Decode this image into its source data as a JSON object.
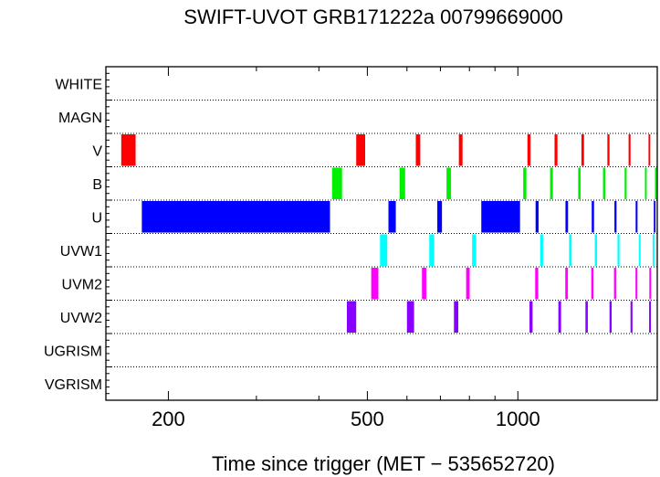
{
  "chart_data": {
    "type": "timeline",
    "title": "SWIFT-UVOT GRB171222a 00799669000",
    "xlabel": "Time since trigger (MET − 535652720)",
    "x_scale": "log",
    "xlim": [
      150,
      1900
    ],
    "x_ticks": [
      200,
      500,
      1000
    ],
    "x_tick_labels": [
      "200",
      "500",
      "1000"
    ],
    "rows": [
      "WHITE",
      "MAGN",
      "V",
      "B",
      "U",
      "UVW1",
      "UVM2",
      "UVW2",
      "UGRISM",
      "VGRISM"
    ],
    "series": [
      {
        "filter": "WHITE",
        "color": "#000000",
        "intervals": []
      },
      {
        "filter": "MAGN",
        "color": "#000000",
        "intervals": []
      },
      {
        "filter": "V",
        "color": "#ff0000",
        "intervals": [
          [
            161,
            172
          ],
          [
            475,
            495
          ],
          [
            625,
            638
          ],
          [
            762,
            775
          ],
          [
            1045,
            1060
          ],
          [
            1184,
            1200
          ],
          [
            1340,
            1356
          ],
          [
            1510,
            1525
          ],
          [
            1665,
            1680
          ],
          [
            1825,
            1840
          ]
        ]
      },
      {
        "filter": "B",
        "color": "#00ee00",
        "intervals": [
          [
            425,
            445
          ],
          [
            580,
            595
          ],
          [
            720,
            735
          ],
          [
            1025,
            1040
          ],
          [
            1160,
            1175
          ],
          [
            1320,
            1335
          ],
          [
            1480,
            1495
          ],
          [
            1635,
            1650
          ],
          [
            1795,
            1810
          ],
          [
            1880,
            1895
          ]
        ]
      },
      {
        "filter": "U",
        "color": "#0000ff",
        "intervals": [
          [
            177,
            421
          ],
          [
            551,
            570
          ],
          [
            690,
            705
          ],
          [
            845,
            1010
          ],
          [
            1085,
            1100
          ],
          [
            1245,
            1260
          ],
          [
            1405,
            1420
          ],
          [
            1560,
            1575
          ],
          [
            1720,
            1735
          ],
          [
            1870,
            1885
          ]
        ]
      },
      {
        "filter": "UVW1",
        "color": "#00ffff",
        "intervals": [
          [
            530,
            548
          ],
          [
            665,
            680
          ],
          [
            810,
            825
          ],
          [
            1108,
            1123
          ],
          [
            1266,
            1281
          ],
          [
            1425,
            1440
          ],
          [
            1582,
            1597
          ],
          [
            1745,
            1760
          ],
          [
            1860,
            1875
          ]
        ]
      },
      {
        "filter": "UVM2",
        "color": "#ff00ff",
        "intervals": [
          [
            509,
            526
          ],
          [
            643,
            656
          ],
          [
            788,
            801
          ],
          [
            1083,
            1098
          ],
          [
            1244,
            1259
          ],
          [
            1402,
            1417
          ],
          [
            1557,
            1572
          ],
          [
            1719,
            1734
          ],
          [
            1832,
            1847
          ]
        ]
      },
      {
        "filter": "UVW2",
        "color": "#8800ff",
        "intervals": [
          [
            455,
            475
          ],
          [
            600,
            620
          ],
          [
            745,
            760
          ],
          [
            1055,
            1070
          ],
          [
            1205,
            1220
          ],
          [
            1365,
            1380
          ],
          [
            1525,
            1540
          ],
          [
            1680,
            1695
          ],
          [
            1830,
            1845
          ]
        ]
      },
      {
        "filter": "UGRISM",
        "color": "#000000",
        "intervals": []
      },
      {
        "filter": "VGRISM",
        "color": "#000000",
        "intervals": []
      }
    ]
  }
}
